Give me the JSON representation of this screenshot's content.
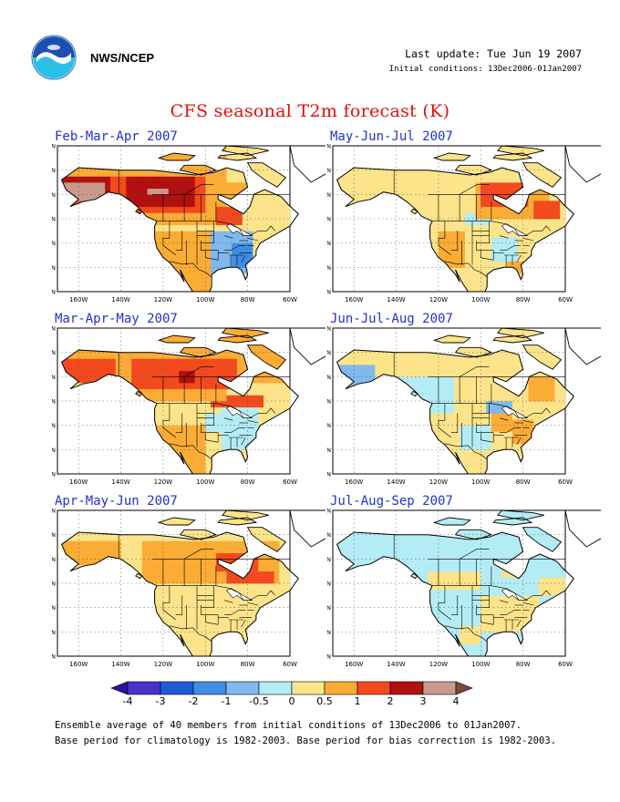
{
  "header": {
    "agency": "NWS/NCEP",
    "last_update": "Last update: Tue Jun 19 2007",
    "initial_conditions": "Initial conditions: 13Dec2006-01Jan2007"
  },
  "title": "CFS seasonal T2m forecast (K)",
  "axes": {
    "lon_labels": [
      "160W",
      "140W",
      "120W",
      "100W",
      "80W",
      "60W"
    ],
    "lat_labels": [
      "20N",
      "30N",
      "40N",
      "50N",
      "60N",
      "70N",
      "80N"
    ]
  },
  "panels": [
    {
      "title": "Feb-Mar-Apr 2007",
      "pattern": "far"
    },
    {
      "title": "May-Jun-Jul 2007",
      "pattern": "mjj"
    },
    {
      "title": "Mar-Apr-May 2007",
      "pattern": "mam"
    },
    {
      "title": "Jun-Jul-Aug 2007",
      "pattern": "jja"
    },
    {
      "title": "Apr-May-Jun 2007",
      "pattern": "amj"
    },
    {
      "title": "Jul-Aug-Sep 2007",
      "pattern": "jas"
    }
  ],
  "colorbar": {
    "labels": [
      "-4",
      "-3",
      "-2",
      "-1",
      "-0.5",
      "0",
      "0.5",
      "1",
      "2",
      "3",
      "4"
    ],
    "colors": [
      "#2a14a0",
      "#4633c8",
      "#1e5cd6",
      "#3e8ee6",
      "#7fb9ee",
      "#b3ecf5",
      "#fde48a",
      "#fbac35",
      "#f24a1e",
      "#b01010",
      "#c99a8c",
      "#7b4a3a"
    ]
  },
  "footer": {
    "line1": "Ensemble average of 40 members from initial conditions of 13Dec2006 to 01Jan2007.",
    "line2": "Base period for climatology is 1982-2003. Base period for bias correction is 1982-2003."
  }
}
